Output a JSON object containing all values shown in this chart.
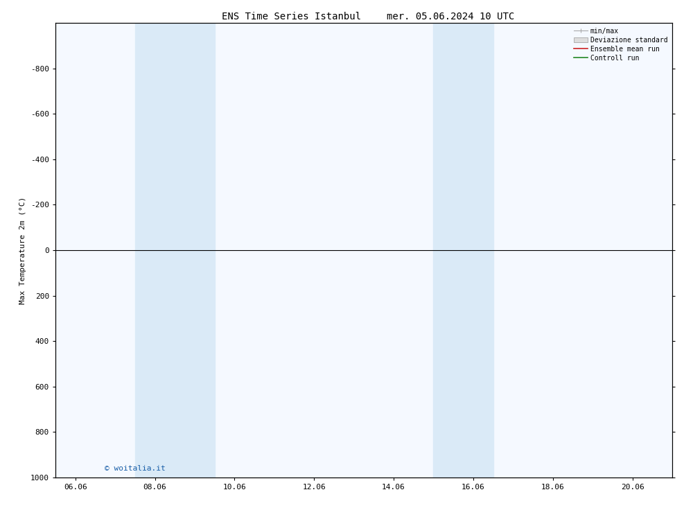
{
  "title": "ENS Time Series Istanbul",
  "title2": "mer. 05.06.2024 10 UTC",
  "ylabel": "Max Temperature 2m (°C)",
  "background_color": "#ffffff",
  "plot_bg_color": "#f5f9ff",
  "ylim_top": -1000,
  "ylim_bottom": 1000,
  "yticks": [
    -800,
    -600,
    -400,
    -200,
    0,
    200,
    400,
    600,
    800,
    1000
  ],
  "xlim_left": 0.0,
  "xlim_right": 15.5,
  "xtick_labels": [
    "06.06",
    "08.06",
    "10.06",
    "12.06",
    "14.06",
    "16.06",
    "18.06",
    "20.06"
  ],
  "xtick_positions": [
    0.5,
    2.5,
    4.5,
    6.5,
    8.5,
    10.5,
    12.5,
    14.5
  ],
  "shaded_bands": [
    {
      "x_start": 2.0,
      "x_end": 4.0
    },
    {
      "x_start": 9.5,
      "x_end": 11.0
    }
  ],
  "shaded_color": "#daeaf7",
  "zero_line_color": "#000000",
  "watermark": "© woitalia.it",
  "watermark_color": "#1a5fa8",
  "font_size_title": 10,
  "font_size_axis": 8,
  "font_size_ticks": 8,
  "font_size_watermark": 8,
  "spine_color": "#000000",
  "tick_color": "#000000",
  "legend_min_max_color": "#aaaaaa",
  "legend_dev_std_color": "#dddddd",
  "legend_ensemble_color": "#cc2222",
  "legend_control_color": "#228822"
}
